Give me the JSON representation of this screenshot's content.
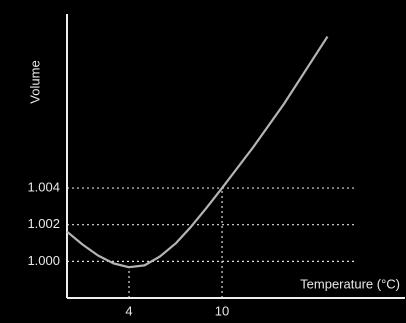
{
  "chart_data": {
    "type": "line",
    "x_label": "Temperature (°C)",
    "y_label": "Volume",
    "x": [
      0,
      1,
      2,
      3,
      4,
      5,
      6,
      7,
      8,
      9,
      10,
      12,
      14,
      16.8
    ],
    "series": [
      {
        "color": "#b4b4b4",
        "values": [
          1.00162,
          1.00092,
          1.00032,
          0.99989,
          0.99968,
          0.99978,
          1.00027,
          1.00097,
          1.00189,
          1.00292,
          1.004,
          1.00622,
          1.0086,
          1.01227
        ]
      }
    ],
    "xlim": [
      0,
      21.8
    ],
    "ylim": [
      0.998,
      1.0135
    ],
    "xticks": [
      4,
      10
    ],
    "yticks": [
      {
        "value": 1.0,
        "label": "1.000"
      },
      {
        "value": 1.002,
        "label": "1.002"
      },
      {
        "value": 1.004,
        "label": "1.004"
      }
    ],
    "grid": true
  }
}
